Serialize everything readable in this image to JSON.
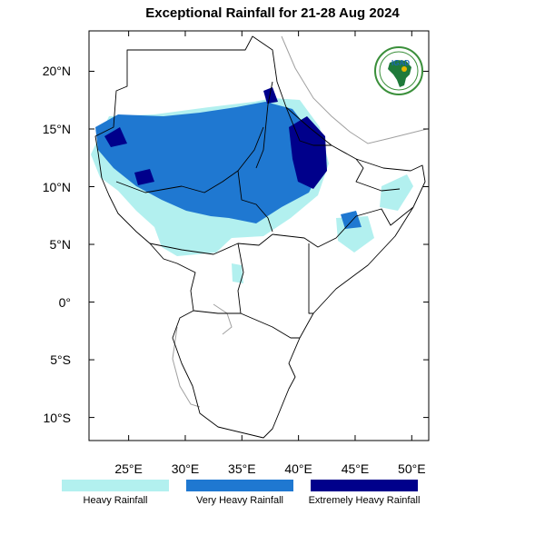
{
  "title": "Exceptional Rainfall for 21-28 Aug 2024",
  "logo": {
    "text": "IGAD",
    "colors": {
      "ring": "#3a8f3a",
      "land": "#1f7a3a",
      "accent": "#e6b800",
      "text": "#1a66b3"
    }
  },
  "lat_ticks": [
    {
      "lat": 20,
      "label": "20°N"
    },
    {
      "lat": 15,
      "label": "15°N"
    },
    {
      "lat": 10,
      "label": "10°N"
    },
    {
      "lat": 5,
      "label": "5°N"
    },
    {
      "lat": 0,
      "label": "0°"
    },
    {
      "lat": -5,
      "label": "5°S"
    },
    {
      "lat": -10,
      "label": "10°S"
    }
  ],
  "lon_ticks": [
    {
      "lon": 25,
      "label": "25°E"
    },
    {
      "lon": 30,
      "label": "30°E"
    },
    {
      "lon": 35,
      "label": "35°E"
    },
    {
      "lon": 40,
      "label": "40°E"
    },
    {
      "lon": 45,
      "label": "45°E"
    },
    {
      "lon": 50,
      "label": "50°E"
    }
  ],
  "extent": {
    "lon": [
      21.5,
      51.5
    ],
    "lat": [
      -12,
      23.5
    ]
  },
  "legend": [
    {
      "label": "Heavy Rainfall",
      "color": "#b2f0ef"
    },
    {
      "label": "Very Heavy Rainfall",
      "color": "#1f78d1"
    },
    {
      "label": "Extremely Heavy Rainfall",
      "color": "#00008b"
    }
  ]
}
